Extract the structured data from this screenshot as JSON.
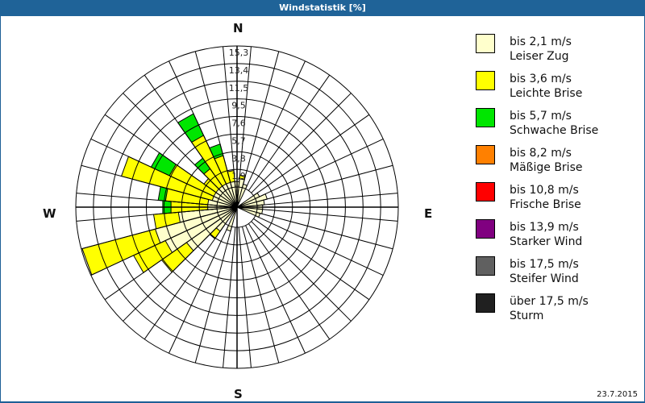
{
  "title": "Windstatistik [%]",
  "date": "23.7.2015",
  "compass": {
    "n": "N",
    "e": "E",
    "s": "S",
    "w": "W"
  },
  "legend": [
    {
      "range": "bis 2,1 m/s",
      "name": "Leiser Zug",
      "color": "#ffffcc"
    },
    {
      "range": "bis 3,6 m/s",
      "name": "Leichte Brise",
      "color": "#ffff00"
    },
    {
      "range": "bis 5,7 m/s",
      "name": "Schwache Brise",
      "color": "#00e600"
    },
    {
      "range": "bis 8,2 m/s",
      "name": "Mäßige Brise",
      "color": "#ff8000"
    },
    {
      "range": "bis 10,8 m/s",
      "name": "Frische Brise",
      "color": "#ff0000"
    },
    {
      "range": "bis 13,9 m/s",
      "name": "Starker Wind",
      "color": "#800080"
    },
    {
      "range": "bis 17,5 m/s",
      "name": "Steifer Wind",
      "color": "#606060"
    },
    {
      "range": "über 17,5 m/s",
      "name": "Sturm",
      "color": "#202020"
    }
  ],
  "chart_data": {
    "type": "polar-bar (wind rose)",
    "title": "Windstatistik [%]",
    "ring_labels": [
      "1,9",
      "3,8",
      "5,7",
      "7,6",
      "9,5",
      "11,5",
      "13,4",
      "15,3"
    ],
    "rmax": 15.3,
    "sector_width_deg": 10,
    "series": [
      "bis 2,1 m/s",
      "bis 3,6 m/s",
      "bis 5,7 m/s"
    ],
    "sectors": [
      {
        "dir": 0,
        "values": [
          0.6,
          0,
          0
        ]
      },
      {
        "dir": 10,
        "values": [
          0.9,
          0.4,
          0
        ]
      },
      {
        "dir": 20,
        "values": [
          0.4,
          0,
          0
        ]
      },
      {
        "dir": 60,
        "values": [
          0.5,
          0,
          0
        ]
      },
      {
        "dir": 70,
        "values": [
          1.2,
          0,
          0
        ]
      },
      {
        "dir": 80,
        "values": [
          0.8,
          0,
          0
        ]
      },
      {
        "dir": 90,
        "values": [
          0.6,
          0,
          0
        ]
      },
      {
        "dir": 100,
        "values": [
          0.6,
          0,
          0
        ]
      },
      {
        "dir": 110,
        "values": [
          0.4,
          0,
          0
        ]
      },
      {
        "dir": 200,
        "values": [
          0.5,
          0,
          0
        ]
      },
      {
        "dir": 220,
        "values": [
          1.0,
          1.0,
          0
        ]
      },
      {
        "dir": 230,
        "values": [
          4.5,
          3.3,
          0
        ]
      },
      {
        "dir": 240,
        "values": [
          6.4,
          3.8,
          0
        ]
      },
      {
        "dir": 250,
        "values": [
          7.0,
          8.2,
          0
        ]
      },
      {
        "dir": 260,
        "values": [
          4.2,
          2.7,
          0
        ]
      },
      {
        "dir": 270,
        "values": [
          1.0,
          4.0,
          0.9
        ]
      },
      {
        "dir": 280,
        "values": [
          1.0,
          4.6,
          0.8
        ]
      },
      {
        "dir": 290,
        "values": [
          0.6,
          10.2,
          0
        ]
      },
      {
        "dir": 300,
        "values": [
          0.6,
          5.3,
          2.2
        ]
      },
      {
        "dir": 310,
        "values": [
          0.6,
          1.6,
          0
        ]
      },
      {
        "dir": 320,
        "values": [
          0.6,
          2.3,
          1.4
        ]
      },
      {
        "dir": 330,
        "values": [
          0.6,
          5.8,
          2.6
        ]
      },
      {
        "dir": 340,
        "values": [
          0.6,
          3.0,
          1.3
        ]
      },
      {
        "dir": 350,
        "values": [
          0.6,
          1.2,
          0
        ]
      }
    ]
  }
}
